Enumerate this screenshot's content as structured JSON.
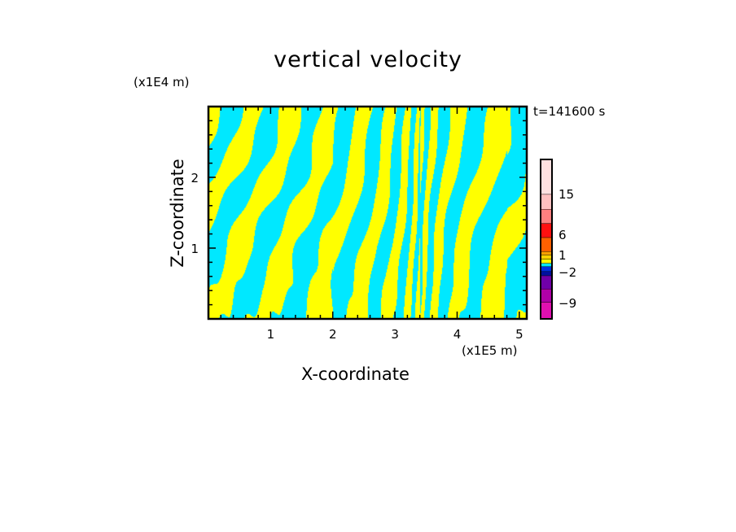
{
  "chart_data": {
    "type": "heatmap",
    "subtype": "filled-contour",
    "title": "vertical velocity",
    "xlabel": "X-coordinate",
    "ylabel": "Z-coordinate",
    "x_unit": "(x1E5 m)",
    "y_unit": "(x1E4 m)",
    "time_label": "t=141600 s",
    "xlim": [
      0,
      5.12
    ],
    "ylim": [
      0,
      3.0
    ],
    "x_ticks": [
      "1",
      "2",
      "3",
      "4",
      "5"
    ],
    "x_tick_values": [
      1,
      2,
      3,
      4,
      5
    ],
    "y_ticks": [
      "1",
      "2"
    ],
    "y_tick_values": [
      1,
      2
    ],
    "pattern_center_x": 3.4,
    "dominant_levels": [
      "yellow (0 to 1)",
      "cyan (-1 to 0)"
    ],
    "colorbar": {
      "labels": [
        "15",
        "6",
        "1",
        "−2",
        "−9"
      ],
      "colors_bottom_to_top": [
        "#e010b0",
        "#b000a8",
        "#7000a8",
        "#0010a0",
        "#0030e0",
        "#00e8ff",
        "#ffff00",
        "#ffd000",
        "#ffa000",
        "#ff6000",
        "#ff1010",
        "#ff8080",
        "#ffc0c0",
        "#ffe0e0"
      ],
      "label_band_index": {
        "15": 12,
        "6": 9,
        "1": 7,
        "−2": 4,
        "−9": 0
      }
    }
  }
}
